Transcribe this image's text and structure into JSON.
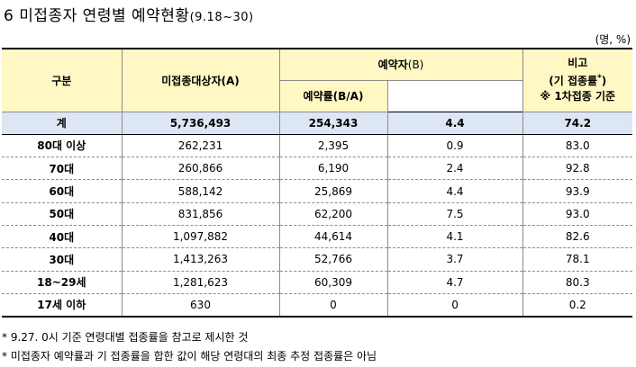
{
  "title": {
    "main": "6 미접종자 연령별 예약현황",
    "period": "(9.18~30)"
  },
  "unit": "(명, %)",
  "table": {
    "headers": {
      "category": "구분",
      "unvaccinated": "미접종대상자(A)",
      "reservations": "예약자",
      "reservations_suffix": "(B)",
      "rate": "예약률(B/A)",
      "note_title": "비고",
      "note_line2": "(기 접종률",
      "note_mark": "*",
      "note_close": ")",
      "note_line3": "※ 1차접종 기준"
    },
    "rows": [
      {
        "group": "계",
        "unvaccinated": "5,736,493",
        "reservations": "254,343",
        "rate": "4.4",
        "note": "74.2"
      },
      {
        "group": "80대 이상",
        "unvaccinated": "262,231",
        "reservations": "2,395",
        "rate": "0.9",
        "note": "83.0"
      },
      {
        "group": "70대",
        "unvaccinated": "260,866",
        "reservations": "6,190",
        "rate": "2.4",
        "note": "92.8"
      },
      {
        "group": "60대",
        "unvaccinated": "588,142",
        "reservations": "25,869",
        "rate": "4.4",
        "note": "93.9"
      },
      {
        "group": "50대",
        "unvaccinated": "831,856",
        "reservations": "62,200",
        "rate": "7.5",
        "note": "93.0"
      },
      {
        "group": "40대",
        "unvaccinated": "1,097,882",
        "reservations": "44,614",
        "rate": "4.1",
        "note": "82.6"
      },
      {
        "group": "30대",
        "unvaccinated": "1,413,263",
        "reservations": "52,766",
        "rate": "3.7",
        "note": "78.1"
      },
      {
        "group": "18~29세",
        "unvaccinated": "1,281,623",
        "reservations": "60,309",
        "rate": "4.7",
        "note": "80.3"
      },
      {
        "group": "17세 이하",
        "unvaccinated": "630",
        "reservations": "0",
        "rate": "0",
        "note": "0.2"
      }
    ]
  },
  "notes": [
    "* 9.27. 0시 기준 연령대별 접종률을 참고로 제시한 것",
    "* 미접종자 예약률과 기 접종률을 합한 값이 해당 연령대의 최종 추정 접종률은 아님"
  ]
}
